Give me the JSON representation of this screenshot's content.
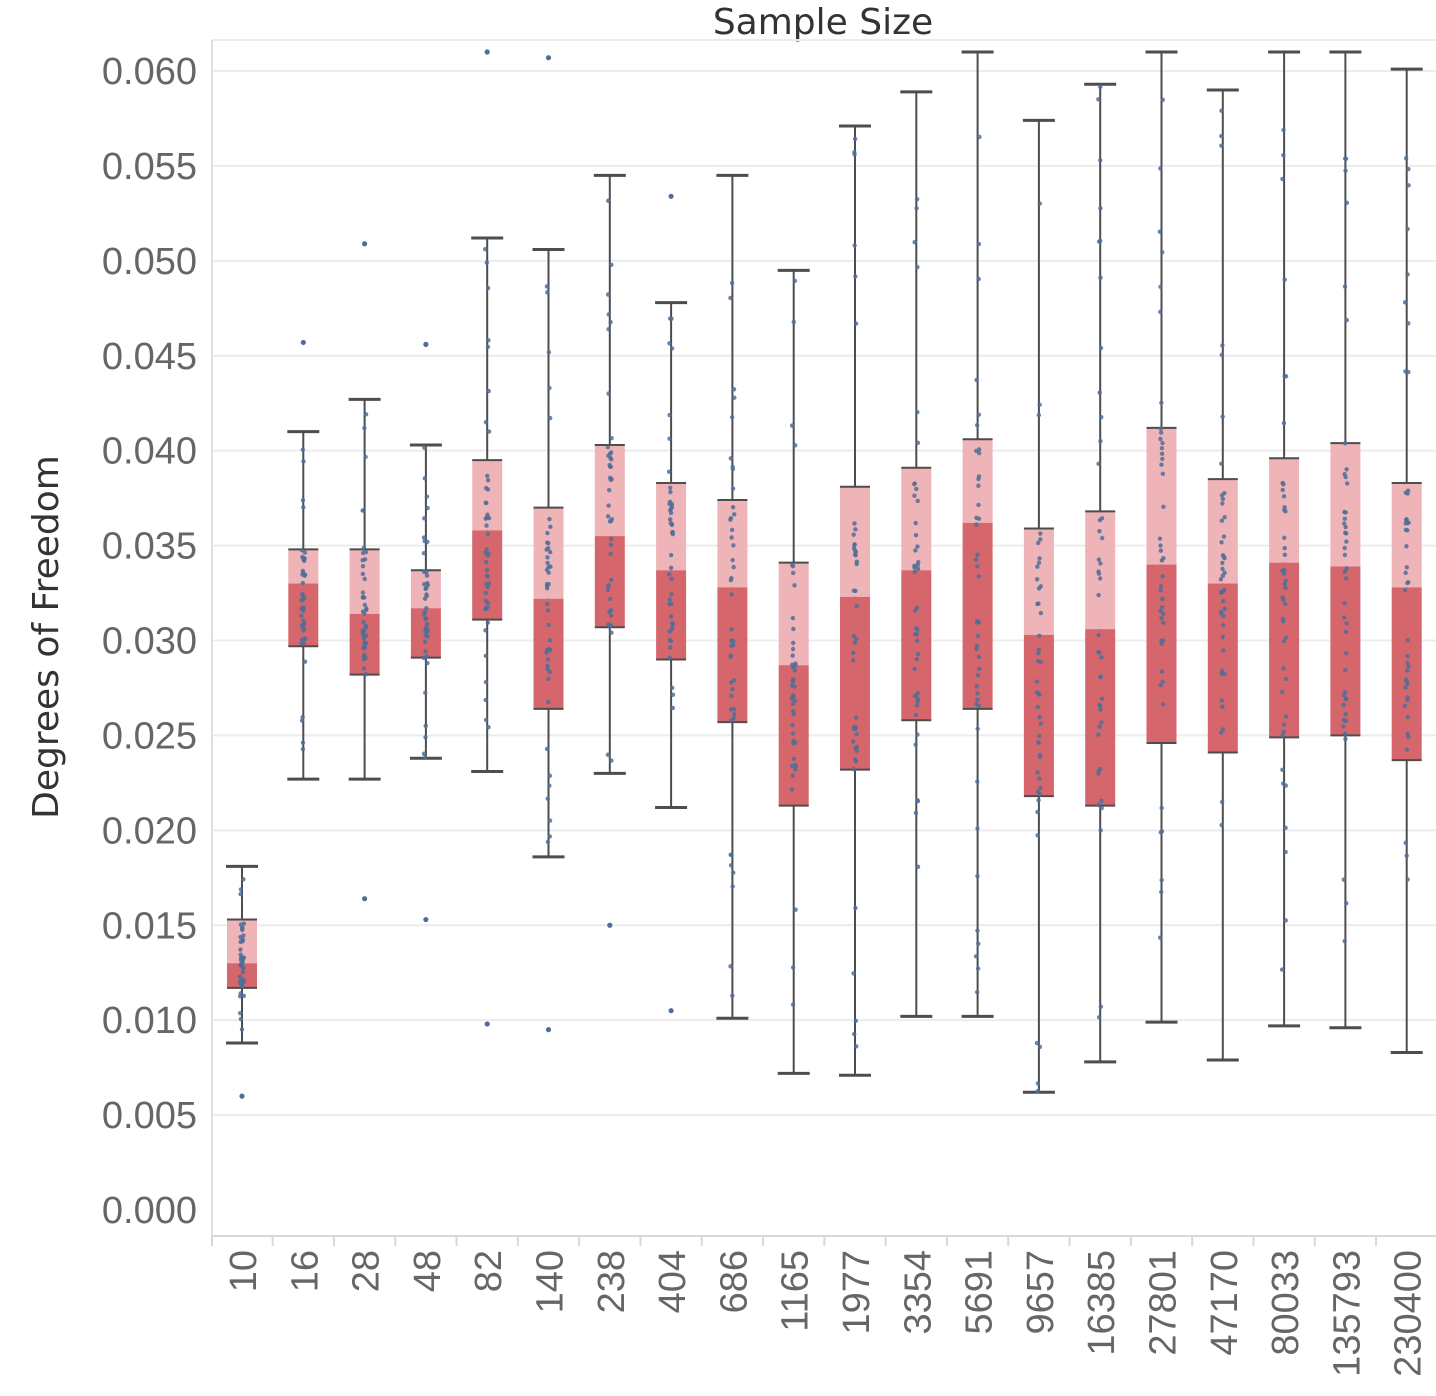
{
  "chart_data": {
    "type": "box",
    "title": "Sample Size",
    "ylabel": "Degrees of Freedom",
    "xlabel": "",
    "ylim": [
      0,
      0.061
    ],
    "yticks": [
      "0.000",
      "0.005",
      "0.010",
      "0.015",
      "0.020",
      "0.025",
      "0.030",
      "0.035",
      "0.040",
      "0.045",
      "0.050",
      "0.055",
      "0.060"
    ],
    "categories": [
      "10",
      "16",
      "28",
      "48",
      "82",
      "140",
      "238",
      "404",
      "686",
      "1165",
      "1977",
      "3354",
      "5691",
      "9657",
      "16385",
      "27801",
      "47170",
      "80033",
      "135793",
      "230400"
    ],
    "boxes": [
      {
        "category": "10",
        "whisker_low": 0.0088,
        "q1": 0.0117,
        "median": 0.013,
        "q3": 0.0153,
        "whisker_high": 0.0181,
        "outliers": [
          0.006
        ]
      },
      {
        "category": "16",
        "whisker_low": 0.0227,
        "q1": 0.0297,
        "median": 0.033,
        "q3": 0.0348,
        "whisker_high": 0.041,
        "outliers": [
          0.0457
        ]
      },
      {
        "category": "28",
        "whisker_low": 0.0227,
        "q1": 0.0282,
        "median": 0.0314,
        "q3": 0.0348,
        "whisker_high": 0.0427,
        "outliers": [
          0.0509,
          0.0164
        ]
      },
      {
        "category": "48",
        "whisker_low": 0.0238,
        "q1": 0.0291,
        "median": 0.0317,
        "q3": 0.0337,
        "whisker_high": 0.0403,
        "outliers": [
          0.0456,
          0.0153
        ]
      },
      {
        "category": "82",
        "whisker_low": 0.0231,
        "q1": 0.0311,
        "median": 0.0358,
        "q3": 0.0395,
        "whisker_high": 0.0512,
        "outliers": [
          0.061,
          0.0098
        ]
      },
      {
        "category": "140",
        "whisker_low": 0.0186,
        "q1": 0.0264,
        "median": 0.0322,
        "q3": 0.037,
        "whisker_high": 0.0506,
        "outliers": [
          0.0607,
          0.0095
        ]
      },
      {
        "category": "238",
        "whisker_low": 0.023,
        "q1": 0.0307,
        "median": 0.0355,
        "q3": 0.0403,
        "whisker_high": 0.0545,
        "outliers": [
          0.015
        ]
      },
      {
        "category": "404",
        "whisker_low": 0.0212,
        "q1": 0.029,
        "median": 0.0337,
        "q3": 0.0383,
        "whisker_high": 0.0478,
        "outliers": [
          0.0534,
          0.0105
        ]
      },
      {
        "category": "686",
        "whisker_low": 0.0101,
        "q1": 0.0257,
        "median": 0.0328,
        "q3": 0.0374,
        "whisker_high": 0.0545,
        "outliers": []
      },
      {
        "category": "1165",
        "whisker_low": 0.0072,
        "q1": 0.0213,
        "median": 0.0287,
        "q3": 0.0341,
        "whisker_high": 0.0495,
        "outliers": []
      },
      {
        "category": "1977",
        "whisker_low": 0.0071,
        "q1": 0.0232,
        "median": 0.0323,
        "q3": 0.0381,
        "whisker_high": 0.0571,
        "outliers": []
      },
      {
        "category": "3354",
        "whisker_low": 0.0102,
        "q1": 0.0258,
        "median": 0.0337,
        "q3": 0.0391,
        "whisker_high": 0.0589,
        "outliers": []
      },
      {
        "category": "5691",
        "whisker_low": 0.0102,
        "q1": 0.0264,
        "median": 0.0362,
        "q3": 0.0406,
        "whisker_high": 0.061,
        "outliers": []
      },
      {
        "category": "9657",
        "whisker_low": 0.0062,
        "q1": 0.0218,
        "median": 0.0303,
        "q3": 0.0359,
        "whisker_high": 0.0574,
        "outliers": []
      },
      {
        "category": "16385",
        "whisker_low": 0.0078,
        "q1": 0.0213,
        "median": 0.0306,
        "q3": 0.0368,
        "whisker_high": 0.0593,
        "outliers": []
      },
      {
        "category": "27801",
        "whisker_low": 0.0099,
        "q1": 0.0246,
        "median": 0.034,
        "q3": 0.0412,
        "whisker_high": 0.061,
        "outliers": []
      },
      {
        "category": "47170",
        "whisker_low": 0.0079,
        "q1": 0.0241,
        "median": 0.033,
        "q3": 0.0385,
        "whisker_high": 0.059,
        "outliers": []
      },
      {
        "category": "80033",
        "whisker_low": 0.0097,
        "q1": 0.0249,
        "median": 0.0341,
        "q3": 0.0396,
        "whisker_high": 0.061,
        "outliers": []
      },
      {
        "category": "135793",
        "whisker_low": 0.0096,
        "q1": 0.025,
        "median": 0.0339,
        "q3": 0.0404,
        "whisker_high": 0.061,
        "outliers": []
      },
      {
        "category": "230400",
        "whisker_low": 0.0083,
        "q1": 0.0237,
        "median": 0.0328,
        "q3": 0.0383,
        "whisker_high": 0.0601,
        "outliers": []
      }
    ],
    "colors": {
      "upper_box": "#efb4b7",
      "lower_box": "#d5666c",
      "whisker": "#4d4d4d",
      "points": "#4e6e99",
      "grid": "#ececec"
    }
  }
}
